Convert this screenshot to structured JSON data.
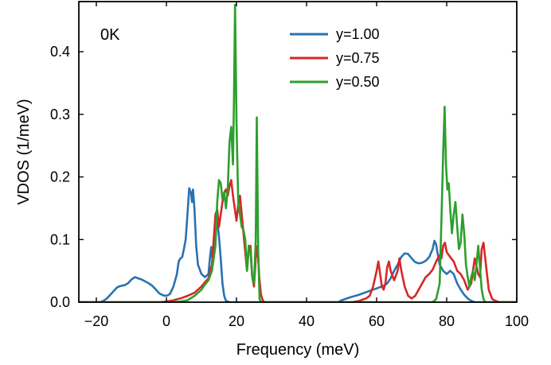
{
  "chart_data": {
    "type": "line",
    "xlabel": "Frequency (meV)",
    "ylabel": "VDOS (1/meV)",
    "xlim": [
      -25,
      100
    ],
    "ylim": [
      0,
      0.48
    ],
    "xticks": [
      -20,
      0,
      20,
      40,
      60,
      80,
      100
    ],
    "xtick_labels": [
      "−20",
      "0",
      "20",
      "40",
      "60",
      "80",
      "100"
    ],
    "yticks": [
      0.0,
      0.1,
      0.2,
      0.3,
      0.4
    ],
    "ytick_labels": [
      "0.0",
      "0.1",
      "0.2",
      "0.3",
      "0.4"
    ],
    "grid": false,
    "legend_position": "top-center",
    "annotation": "0K",
    "series": [
      {
        "name": "y=1.00",
        "color": "#2b72b0",
        "points": [
          [
            -25,
            0
          ],
          [
            -19,
            0
          ],
          [
            -18,
            0.002
          ],
          [
            -17,
            0.006
          ],
          [
            -16,
            0.012
          ],
          [
            -15,
            0.018
          ],
          [
            -14,
            0.024
          ],
          [
            -13,
            0.026
          ],
          [
            -12,
            0.027
          ],
          [
            -11,
            0.03
          ],
          [
            -10,
            0.036
          ],
          [
            -9,
            0.04
          ],
          [
            -8,
            0.038
          ],
          [
            -7,
            0.036
          ],
          [
            -6,
            0.033
          ],
          [
            -5,
            0.03
          ],
          [
            -4,
            0.026
          ],
          [
            -3,
            0.02
          ],
          [
            -2,
            0.014
          ],
          [
            -1,
            0.011
          ],
          [
            0,
            0.01
          ],
          [
            1,
            0.013
          ],
          [
            2,
            0.025
          ],
          [
            3,
            0.045
          ],
          [
            3.5,
            0.065
          ],
          [
            4,
            0.07
          ],
          [
            4.5,
            0.072
          ],
          [
            5,
            0.085
          ],
          [
            5.5,
            0.1
          ],
          [
            6,
            0.14
          ],
          [
            6.5,
            0.182
          ],
          [
            7,
            0.175
          ],
          [
            7.3,
            0.16
          ],
          [
            7.6,
            0.18
          ],
          [
            8,
            0.15
          ],
          [
            8.5,
            0.09
          ],
          [
            9,
            0.06
          ],
          [
            10,
            0.045
          ],
          [
            11,
            0.04
          ],
          [
            12,
            0.045
          ],
          [
            12.5,
            0.075
          ],
          [
            12.8,
            0.088
          ],
          [
            13.2,
            0.065
          ],
          [
            13.6,
            0.095
          ],
          [
            14,
            0.125
          ],
          [
            14.5,
            0.13
          ],
          [
            15,
            0.105
          ],
          [
            15.5,
            0.07
          ],
          [
            16,
            0.03
          ],
          [
            16.5,
            0.01
          ],
          [
            17,
            0.002
          ],
          [
            18,
            0
          ],
          [
            49,
            0
          ],
          [
            50,
            0.003
          ],
          [
            52,
            0.007
          ],
          [
            55,
            0.012
          ],
          [
            58,
            0.018
          ],
          [
            60,
            0.022
          ],
          [
            62,
            0.026
          ],
          [
            63,
            0.03
          ],
          [
            64,
            0.038
          ],
          [
            65,
            0.05
          ],
          [
            66,
            0.06
          ],
          [
            67,
            0.072
          ],
          [
            68,
            0.078
          ],
          [
            69,
            0.077
          ],
          [
            70,
            0.07
          ],
          [
            71,
            0.064
          ],
          [
            72,
            0.062
          ],
          [
            73,
            0.063
          ],
          [
            74,
            0.066
          ],
          [
            75,
            0.072
          ],
          [
            76,
            0.085
          ],
          [
            76.5,
            0.098
          ],
          [
            77,
            0.092
          ],
          [
            77.5,
            0.075
          ],
          [
            78,
            0.06
          ],
          [
            79,
            0.05
          ],
          [
            80,
            0.045
          ],
          [
            81,
            0.05
          ],
          [
            82,
            0.045
          ],
          [
            83,
            0.03
          ],
          [
            84,
            0.02
          ],
          [
            85,
            0.012
          ],
          [
            86,
            0.006
          ],
          [
            87,
            0.002
          ],
          [
            88,
            0
          ],
          [
            100,
            0
          ]
        ]
      },
      {
        "name": "y=0.75",
        "color": "#d62728",
        "points": [
          [
            -25,
            0
          ],
          [
            -2,
            0
          ],
          [
            0,
            0.001
          ],
          [
            2,
            0.003
          ],
          [
            4,
            0.006
          ],
          [
            6,
            0.01
          ],
          [
            8,
            0.015
          ],
          [
            10,
            0.025
          ],
          [
            11,
            0.032
          ],
          [
            12,
            0.038
          ],
          [
            13,
            0.06
          ],
          [
            13.5,
            0.1
          ],
          [
            14,
            0.14
          ],
          [
            14.5,
            0.148
          ],
          [
            15,
            0.12
          ],
          [
            15.5,
            0.14
          ],
          [
            16,
            0.16
          ],
          [
            16.5,
            0.175
          ],
          [
            17,
            0.18
          ],
          [
            17.5,
            0.17
          ],
          [
            18,
            0.185
          ],
          [
            18.5,
            0.195
          ],
          [
            19,
            0.17
          ],
          [
            19.5,
            0.15
          ],
          [
            20,
            0.13
          ],
          [
            20.5,
            0.155
          ],
          [
            21,
            0.17
          ],
          [
            21.5,
            0.14
          ],
          [
            22,
            0.11
          ],
          [
            22.5,
            0.08
          ],
          [
            23,
            0.05
          ],
          [
            23.5,
            0.085
          ],
          [
            24,
            0.09
          ],
          [
            24.5,
            0.04
          ],
          [
            25,
            0.025
          ],
          [
            25.5,
            0.07
          ],
          [
            26,
            0.09
          ],
          [
            26.5,
            0.04
          ],
          [
            27,
            0.012
          ],
          [
            27.5,
            0.003
          ],
          [
            28,
            0
          ],
          [
            53,
            0
          ],
          [
            55,
            0.002
          ],
          [
            57,
            0.006
          ],
          [
            58,
            0.01
          ],
          [
            59,
            0.025
          ],
          [
            60,
            0.05
          ],
          [
            60.5,
            0.065
          ],
          [
            61,
            0.045
          ],
          [
            61.5,
            0.025
          ],
          [
            62,
            0.02
          ],
          [
            62.5,
            0.03
          ],
          [
            63,
            0.055
          ],
          [
            63.5,
            0.065
          ],
          [
            64,
            0.05
          ],
          [
            65,
            0.035
          ],
          [
            66,
            0.05
          ],
          [
            66.5,
            0.07
          ],
          [
            67,
            0.052
          ],
          [
            68,
            0.025
          ],
          [
            69,
            0.01
          ],
          [
            70,
            0.006
          ],
          [
            71,
            0.01
          ],
          [
            72,
            0.02
          ],
          [
            73,
            0.03
          ],
          [
            74,
            0.04
          ],
          [
            75,
            0.045
          ],
          [
            76,
            0.052
          ],
          [
            77,
            0.065
          ],
          [
            78,
            0.075
          ],
          [
            78.5,
            0.07
          ],
          [
            79,
            0.09
          ],
          [
            79.5,
            0.095
          ],
          [
            80,
            0.08
          ],
          [
            81,
            0.072
          ],
          [
            82,
            0.065
          ],
          [
            83,
            0.05
          ],
          [
            84,
            0.045
          ],
          [
            85,
            0.035
          ],
          [
            86,
            0.02
          ],
          [
            87,
            0.03
          ],
          [
            88,
            0.07
          ],
          [
            89,
            0.045
          ],
          [
            89.5,
            0.04
          ],
          [
            90,
            0.085
          ],
          [
            90.5,
            0.095
          ],
          [
            91,
            0.07
          ],
          [
            92,
            0.02
          ],
          [
            93,
            0.005
          ],
          [
            94,
            0.002
          ],
          [
            95,
            0
          ],
          [
            100,
            0
          ]
        ]
      },
      {
        "name": "y=0.50",
        "color": "#2ca02c",
        "points": [
          [
            -25,
            0
          ],
          [
            2,
            0
          ],
          [
            4,
            0.001
          ],
          [
            6,
            0.003
          ],
          [
            8,
            0.01
          ],
          [
            10,
            0.02
          ],
          [
            11,
            0.028
          ],
          [
            12,
            0.035
          ],
          [
            13,
            0.05
          ],
          [
            14,
            0.09
          ],
          [
            14.5,
            0.16
          ],
          [
            15,
            0.195
          ],
          [
            15.5,
            0.19
          ],
          [
            16,
            0.165
          ],
          [
            16.5,
            0.175
          ],
          [
            17,
            0.15
          ],
          [
            17.5,
            0.18
          ],
          [
            18,
            0.255
          ],
          [
            18.5,
            0.28
          ],
          [
            19,
            0.22
          ],
          [
            19.3,
            0.33
          ],
          [
            19.6,
            0.475
          ],
          [
            20,
            0.29
          ],
          [
            20.5,
            0.16
          ],
          [
            21,
            0.14
          ],
          [
            21.5,
            0.12
          ],
          [
            22,
            0.115
          ],
          [
            22.5,
            0.1
          ],
          [
            23,
            0.05
          ],
          [
            23.5,
            0.09
          ],
          [
            24,
            0.08
          ],
          [
            24.5,
            0.04
          ],
          [
            25,
            0.03
          ],
          [
            25.5,
            0.1
          ],
          [
            25.8,
            0.295
          ],
          [
            26.2,
            0.08
          ],
          [
            26.6,
            0.005
          ],
          [
            27,
            0
          ],
          [
            76,
            0
          ],
          [
            77,
            0.005
          ],
          [
            78,
            0.03
          ],
          [
            78.6,
            0.15
          ],
          [
            79,
            0.24
          ],
          [
            79.4,
            0.312
          ],
          [
            79.8,
            0.22
          ],
          [
            80.2,
            0.18
          ],
          [
            80.6,
            0.19
          ],
          [
            81,
            0.15
          ],
          [
            81.5,
            0.11
          ],
          [
            82,
            0.14
          ],
          [
            82.5,
            0.16
          ],
          [
            83,
            0.12
          ],
          [
            83.5,
            0.085
          ],
          [
            84,
            0.095
          ],
          [
            84.5,
            0.14
          ],
          [
            85,
            0.11
          ],
          [
            85.5,
            0.06
          ],
          [
            86,
            0.04
          ],
          [
            86.5,
            0.025
          ],
          [
            87,
            0.04
          ],
          [
            87.5,
            0.05
          ],
          [
            88,
            0.035
          ],
          [
            88.5,
            0.06
          ],
          [
            89,
            0.09
          ],
          [
            89.5,
            0.055
          ],
          [
            90,
            0.02
          ],
          [
            90.5,
            0.005
          ],
          [
            91,
            0
          ],
          [
            100,
            0
          ]
        ]
      }
    ]
  }
}
